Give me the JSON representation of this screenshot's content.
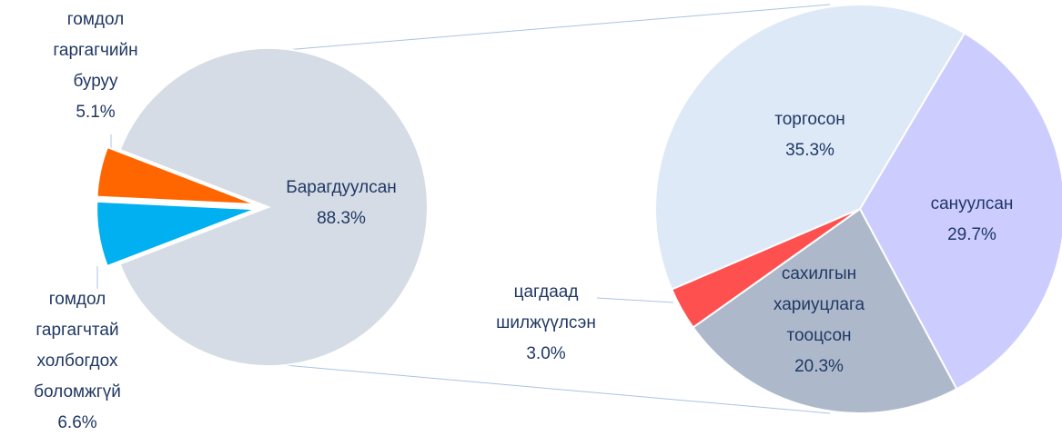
{
  "chart_data": [
    {
      "type": "pie",
      "categories": [
        [
          "Барагдуулсан"
        ],
        [
          "гомдол",
          "гаргагчийн",
          "буруу"
        ],
        [
          "гомдол",
          "гаргагчтай",
          "холбогдох",
          "боломжгүй"
        ]
      ],
      "values": [
        88.3,
        5.1,
        6.6
      ],
      "value_labels": [
        "88.3%",
        "5.1%",
        "6.6%"
      ],
      "colors": [
        "#d6dce5",
        "#ff6600",
        "#00b0f0"
      ]
    },
    {
      "type": "pie",
      "categories": [
        [
          "торгосон"
        ],
        [
          "сануулсан"
        ],
        [
          "сахилгын",
          "хариуцлага",
          "тооцсон"
        ],
        [
          "цагдаад",
          "шилжүүлсэн"
        ]
      ],
      "values": [
        35.3,
        29.7,
        20.3,
        3.0
      ],
      "value_labels": [
        "35.3%",
        "29.7%",
        "20.3%",
        "3.0%"
      ],
      "colors": [
        "#dde9f6",
        "#ccccff",
        "#adb9ca",
        "#ff5050"
      ]
    }
  ]
}
